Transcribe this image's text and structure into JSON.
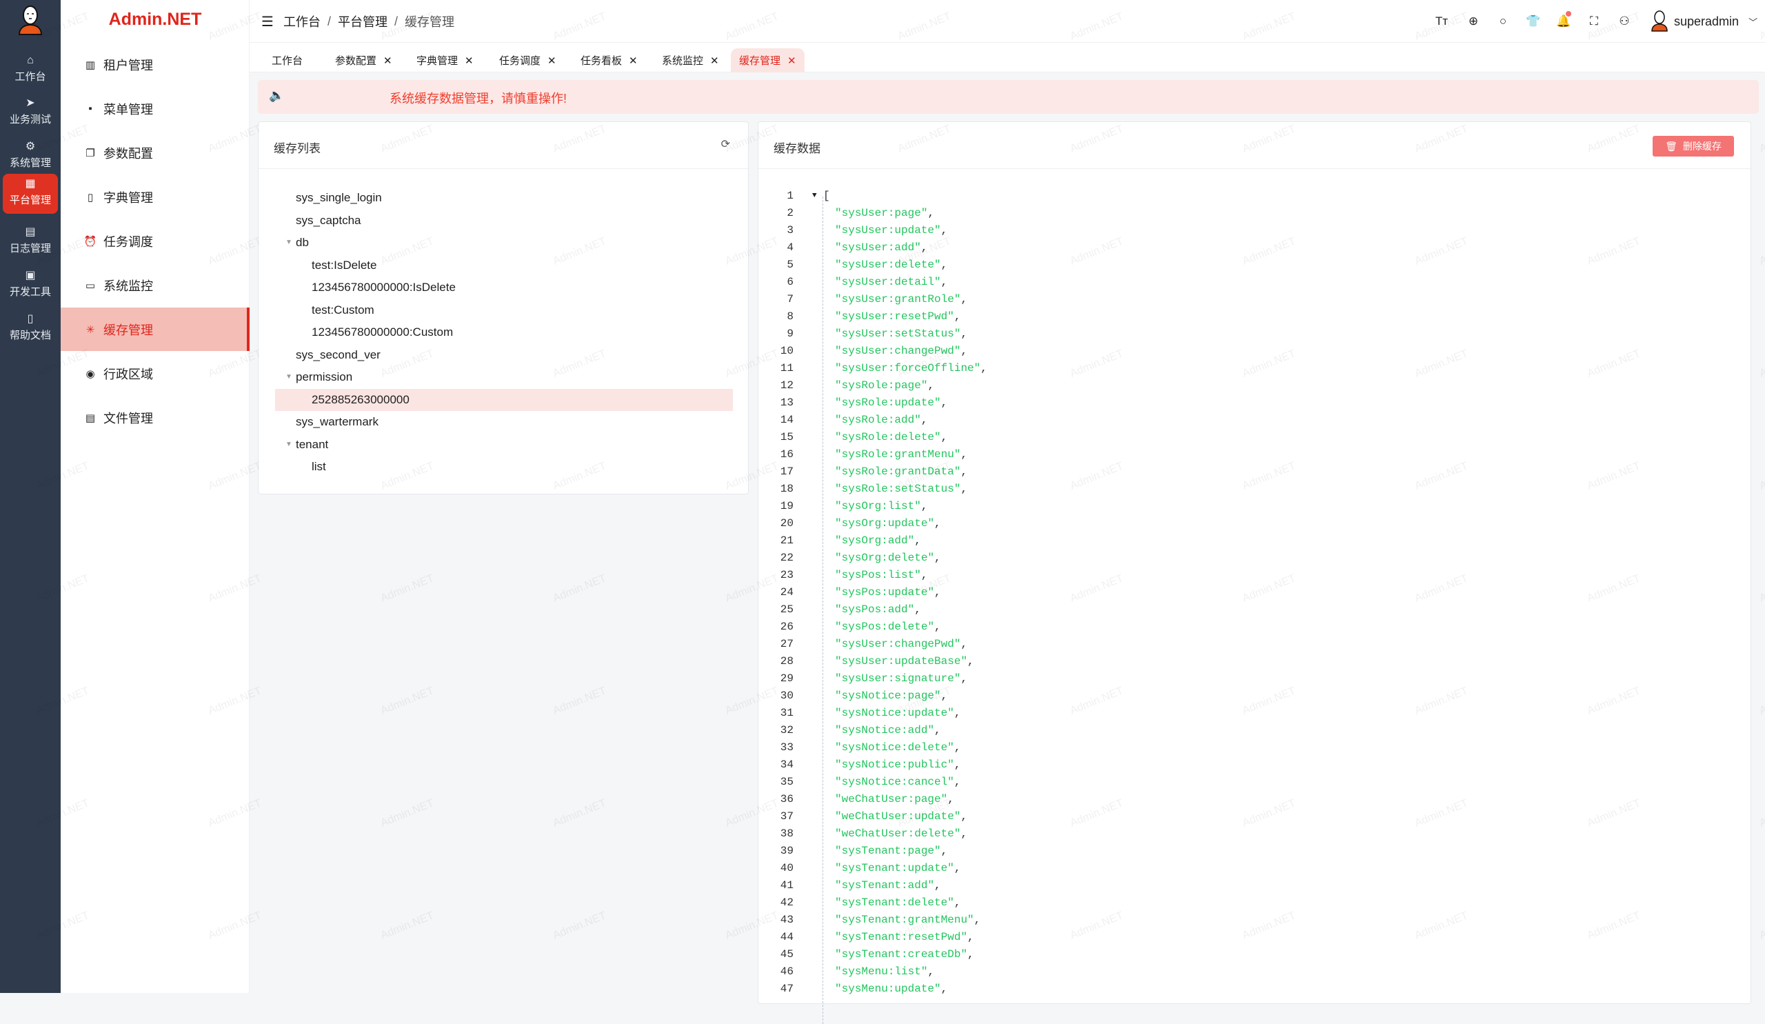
{
  "app": {
    "brand": "Admin.NET",
    "watermark": "Admin.NET"
  },
  "rail": {
    "items": [
      {
        "label": "工作台",
        "icon": "home-icon",
        "glyph": "⌂"
      },
      {
        "label": "业务测试",
        "icon": "send-icon",
        "glyph": "➤"
      },
      {
        "label": "系统管理",
        "icon": "gear-icon",
        "glyph": "⚙"
      },
      {
        "label": "平台管理",
        "icon": "grid-icon",
        "glyph": "▦",
        "active": true
      },
      {
        "label": "日志管理",
        "icon": "document-icon",
        "glyph": "▤"
      },
      {
        "label": "开发工具",
        "icon": "chip-icon",
        "glyph": "▣"
      },
      {
        "label": "帮助文档",
        "icon": "book-icon",
        "glyph": "▯"
      }
    ]
  },
  "menu": {
    "items": [
      {
        "label": "租户管理",
        "icon": "building-icon",
        "glyph": "▥"
      },
      {
        "label": "菜单管理",
        "icon": "grid-icon",
        "glyph": "▪"
      },
      {
        "label": "参数配置",
        "icon": "copy-icon",
        "glyph": "❐"
      },
      {
        "label": "字典管理",
        "icon": "book-icon",
        "glyph": "▯"
      },
      {
        "label": "任务调度",
        "icon": "alarm-icon",
        "glyph": "⏰"
      },
      {
        "label": "系统监控",
        "icon": "monitor-icon",
        "glyph": "▭"
      },
      {
        "label": "缓存管理",
        "icon": "loading-icon",
        "glyph": "✳",
        "active": true
      },
      {
        "label": "行政区域",
        "icon": "location-icon",
        "glyph": "◉"
      },
      {
        "label": "文件管理",
        "icon": "file-icon",
        "glyph": "▤"
      }
    ]
  },
  "header": {
    "breadcrumb": [
      "工作台",
      "平台管理",
      "缓存管理"
    ],
    "breadcrumb_sep": "/",
    "icons": [
      {
        "name": "font-size-icon",
        "glyph": "Tт"
      },
      {
        "name": "language-icon",
        "glyph": "⊕"
      },
      {
        "name": "search-icon",
        "glyph": "○"
      },
      {
        "name": "theme-icon",
        "glyph": "👕"
      },
      {
        "name": "bell-icon",
        "glyph": "🔔",
        "badge": true
      },
      {
        "name": "fullscreen-icon",
        "glyph": "⛶"
      },
      {
        "name": "user-icon",
        "glyph": "⚇"
      }
    ],
    "username": "superadmin"
  },
  "tabs": [
    {
      "label": "工作台",
      "closable": false
    },
    {
      "label": "参数配置",
      "closable": true
    },
    {
      "label": "字典管理",
      "closable": true
    },
    {
      "label": "任务调度",
      "closable": true
    },
    {
      "label": "任务看板",
      "closable": true
    },
    {
      "label": "系统监控",
      "closable": true
    },
    {
      "label": "缓存管理",
      "closable": true,
      "active": true
    }
  ],
  "alert": {
    "text": "系统缓存数据管理，请慎重操作!"
  },
  "cache_list": {
    "title": "缓存列表",
    "tree": [
      {
        "label": "sys_single_login",
        "level": 0
      },
      {
        "label": "sys_captcha",
        "level": 0
      },
      {
        "label": "db",
        "level": 0,
        "expanded": true
      },
      {
        "label": "test:IsDelete",
        "level": 1
      },
      {
        "label": "123456780000000:IsDelete",
        "level": 1
      },
      {
        "label": "test:Custom",
        "level": 1
      },
      {
        "label": "123456780000000:Custom",
        "level": 1
      },
      {
        "label": "sys_second_ver",
        "level": 0
      },
      {
        "label": "permission",
        "level": 0,
        "expanded": true
      },
      {
        "label": "252885263000000",
        "level": 1,
        "selected": true
      },
      {
        "label": "sys_wartermark",
        "level": 0
      },
      {
        "label": "tenant",
        "level": 0,
        "expanded": true
      },
      {
        "label": "list",
        "level": 1
      }
    ]
  },
  "cache_data": {
    "title": "缓存数据",
    "delete_label": "删除缓存",
    "open_bracket": "[",
    "values": [
      "sysUser:page",
      "sysUser:update",
      "sysUser:add",
      "sysUser:delete",
      "sysUser:detail",
      "sysUser:grantRole",
      "sysUser:resetPwd",
      "sysUser:setStatus",
      "sysUser:changePwd",
      "sysUser:forceOffline",
      "sysRole:page",
      "sysRole:update",
      "sysRole:add",
      "sysRole:delete",
      "sysRole:grantMenu",
      "sysRole:grantData",
      "sysRole:setStatus",
      "sysOrg:list",
      "sysOrg:update",
      "sysOrg:add",
      "sysOrg:delete",
      "sysPos:list",
      "sysPos:update",
      "sysPos:add",
      "sysPos:delete",
      "sysUser:changePwd",
      "sysUser:updateBase",
      "sysUser:signature",
      "sysNotice:page",
      "sysNotice:update",
      "sysNotice:add",
      "sysNotice:delete",
      "sysNotice:public",
      "sysNotice:cancel",
      "weChatUser:page",
      "weChatUser:update",
      "weChatUser:delete",
      "sysTenant:page",
      "sysTenant:update",
      "sysTenant:add",
      "sysTenant:delete",
      "sysTenant:grantMenu",
      "sysTenant:resetPwd",
      "sysTenant:createDb",
      "sysMenu:list",
      "sysMenu:update"
    ]
  },
  "colors": {
    "accent": "#e0251b",
    "rail_bg": "#2f3b4c",
    "string": "#22c55e",
    "danger_button": "#f47373",
    "alert_bg": "#fbe8e7"
  }
}
